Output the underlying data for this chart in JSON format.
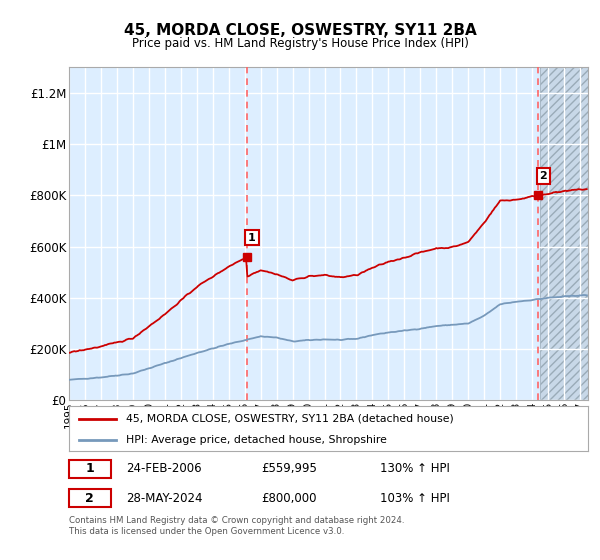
{
  "title": "45, MORDA CLOSE, OSWESTRY, SY11 2BA",
  "subtitle": "Price paid vs. HM Land Registry's House Price Index (HPI)",
  "x_start": 1995.0,
  "x_end": 2027.5,
  "y_min": 0,
  "y_max": 1300000,
  "y_ticks": [
    0,
    200000,
    400000,
    600000,
    800000,
    1000000,
    1200000
  ],
  "y_tick_labels": [
    "£0",
    "£200K",
    "£400K",
    "£600K",
    "£800K",
    "£1M",
    "£1.2M"
  ],
  "x_ticks": [
    1995,
    1996,
    1997,
    1998,
    1999,
    2000,
    2001,
    2002,
    2003,
    2004,
    2005,
    2006,
    2007,
    2008,
    2009,
    2010,
    2011,
    2012,
    2013,
    2014,
    2015,
    2016,
    2017,
    2018,
    2019,
    2020,
    2021,
    2022,
    2023,
    2024,
    2025,
    2026,
    2027
  ],
  "sale1_x": 2006.15,
  "sale1_y": 559995,
  "sale1_label": "1",
  "sale1_date": "24-FEB-2006",
  "sale1_price": "£559,995",
  "sale1_hpi": "130% ↑ HPI",
  "sale2_x": 2024.4,
  "sale2_y": 800000,
  "sale2_label": "2",
  "sale2_date": "28-MAY-2024",
  "sale2_price": "£800,000",
  "sale2_hpi": "103% ↑ HPI",
  "line1_color": "#cc0000",
  "line2_color": "#7799bb",
  "background_color": "#ddeeff",
  "hatch_color": "#c8d8e8",
  "grid_color": "#ffffff",
  "footer": "Contains HM Land Registry data © Crown copyright and database right 2024.\nThis data is licensed under the Open Government Licence v3.0.",
  "legend1": "45, MORDA CLOSE, OSWESTRY, SY11 2BA (detached house)",
  "legend2": "HPI: Average price, detached house, Shropshire"
}
